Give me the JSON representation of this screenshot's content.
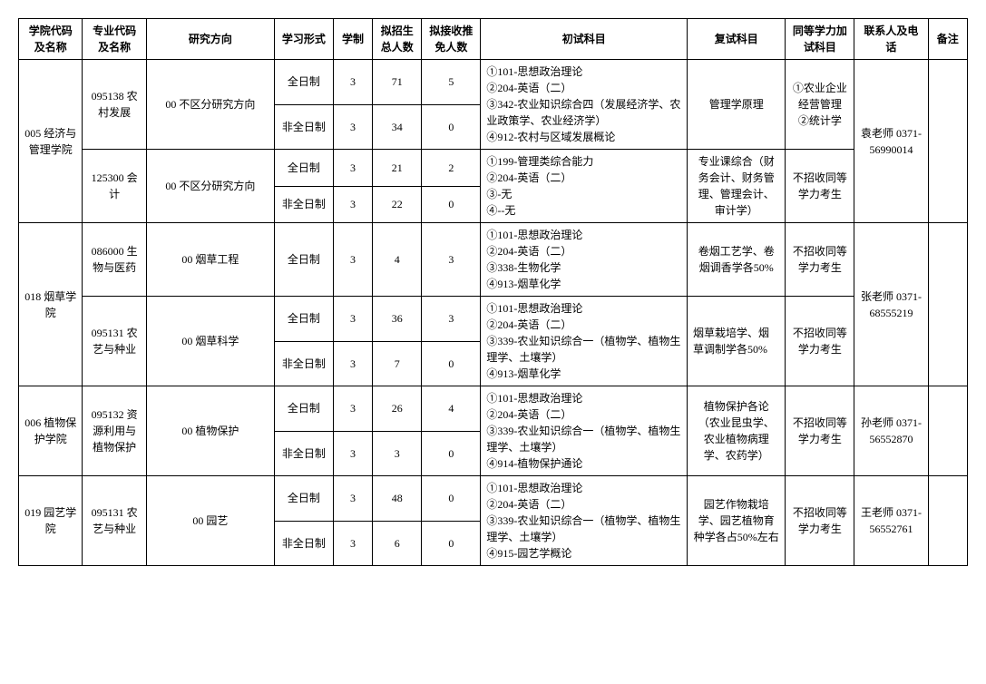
{
  "headers": {
    "col1": "学院代码及名称",
    "col2": "专业代码及名称",
    "col3": "研究方向",
    "col4": "学习形式",
    "col5": "学制",
    "col6": "拟招生总人数",
    "col7": "拟接收推免人数",
    "col8": "初试科目",
    "col9": "复试科目",
    "col10": "同等学力加试科目",
    "col11": "联系人及电话",
    "col12": "备注"
  },
  "college1": {
    "name": "005 经济与管理学院",
    "major1": {
      "name": "095138 农村发展",
      "direction": "00 不区分研究方向",
      "row1_mode": "全日制",
      "row1_len": "3",
      "row1_plan": "71",
      "row1_exempt": "5",
      "row2_mode": "非全日制",
      "row2_len": "3",
      "row2_plan": "34",
      "row2_exempt": "0",
      "exam": "①101-思想政治理论\n②204-英语（二）\n③342-农业知识综合四（发展经济学、农业政策学、农业经济学）\n④912-农村与区域发展概论",
      "retest": "管理学原理",
      "equiv": "①农业企业经营管理\n②统计学"
    },
    "major2": {
      "name": "125300 会计",
      "direction": "00 不区分研究方向",
      "row1_mode": "全日制",
      "row1_len": "3",
      "row1_plan": "21",
      "row1_exempt": "2",
      "row2_mode": "非全日制",
      "row2_len": "3",
      "row2_plan": "22",
      "row2_exempt": "0",
      "exam": "①199-管理类综合能力\n②204-英语（二）\n③-无\n④--无",
      "retest": "专业课综合（财务会计、财务管理、管理会计、审计学）",
      "equiv": "不招收同等学力考生"
    },
    "contact": "袁老师 0371-56990014"
  },
  "college2": {
    "name": "018 烟草学院",
    "major1": {
      "name": "086000 生物与医药",
      "direction": "00 烟草工程",
      "row1_mode": "全日制",
      "row1_len": "3",
      "row1_plan": "4",
      "row1_exempt": "3",
      "exam": "①101-思想政治理论\n②204-英语（二）\n③338-生物化学\n④913-烟草化学",
      "retest": "卷烟工艺学、卷烟调香学各50%",
      "equiv": "不招收同等学力考生"
    },
    "major2": {
      "name": "095131 农艺与种业",
      "direction": "00 烟草科学",
      "row1_mode": "全日制",
      "row1_len": "3",
      "row1_plan": "36",
      "row1_exempt": "3",
      "row2_mode": "非全日制",
      "row2_len": "3",
      "row2_plan": "7",
      "row2_exempt": "0",
      "exam": "①101-思想政治理论\n②204-英语（二）\n③339-农业知识综合一（植物学、植物生理学、土壤学）\n④913-烟草化学",
      "retest": "烟草栽培学、烟草调制学各50%",
      "equiv": "不招收同等学力考生"
    },
    "contact": "张老师 0371-68555219"
  },
  "college3": {
    "name": "006 植物保护学院",
    "major1": {
      "name": "095132 资源利用与植物保护",
      "direction": "00 植物保护",
      "row1_mode": "全日制",
      "row1_len": "3",
      "row1_plan": "26",
      "row1_exempt": "4",
      "row2_mode": "非全日制",
      "row2_len": "3",
      "row2_plan": "3",
      "row2_exempt": "0",
      "exam": "①101-思想政治理论\n②204-英语（二）\n③339-农业知识综合一（植物学、植物生理学、土壤学）\n④914-植物保护通论",
      "retest": "植物保护各论（农业昆虫学、农业植物病理学、农药学）",
      "equiv": "不招收同等学力考生"
    },
    "contact": "孙老师 0371-56552870"
  },
  "college4": {
    "name": "019 园艺学院",
    "major1": {
      "name": "095131 农艺与种业",
      "direction": "00 园艺",
      "row1_mode": "全日制",
      "row1_len": "3",
      "row1_plan": "48",
      "row1_exempt": "0",
      "row2_mode": "非全日制",
      "row2_len": "3",
      "row2_plan": "6",
      "row2_exempt": "0",
      "exam": "①101-思想政治理论\n②204-英语（二）\n③339-农业知识综合一（植物学、植物生理学、土壤学）\n④915-园艺学概论",
      "retest": "园艺作物栽培学、园艺植物育种学各占50%左右",
      "equiv": "不招收同等学力考生"
    },
    "contact": "王老师 0371-56552761"
  }
}
